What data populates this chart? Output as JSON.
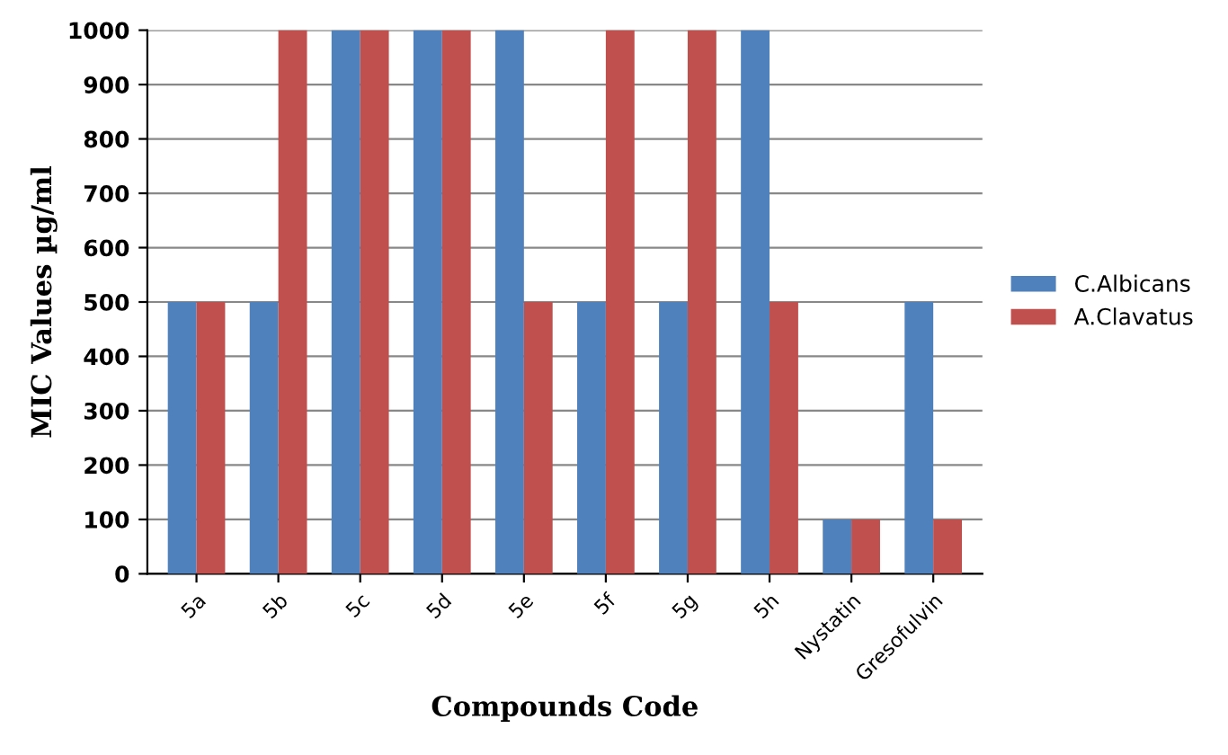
{
  "chart_data": {
    "type": "bar",
    "xlabel": "Compounds Code",
    "ylabel": "MIC Values µg/ml",
    "categories": [
      "5a",
      "5b",
      "5c",
      "5d",
      "5e",
      "5f",
      "5g",
      "5h",
      "Nystatin",
      "Gresofulvin"
    ],
    "series": [
      {
        "name": "C.Albicans",
        "color": "#4f81bd",
        "values": [
          500,
          500,
          1000,
          1000,
          1000,
          500,
          500,
          1000,
          100,
          500
        ]
      },
      {
        "name": "A.Clavatus",
        "color": "#c0504d",
        "values": [
          500,
          1000,
          1000,
          1000,
          500,
          1000,
          1000,
          500,
          100,
          100
        ]
      }
    ],
    "ylim": [
      0,
      1000
    ],
    "yticks": [
      0,
      100,
      200,
      300,
      400,
      500,
      600,
      700,
      800,
      900,
      1000
    ],
    "grid": "y",
    "legend": "right"
  }
}
